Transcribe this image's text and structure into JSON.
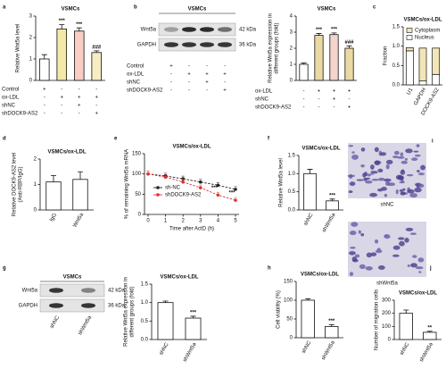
{
  "chart_data": [
    {
      "type": "bar",
      "panel": "a",
      "title": "VSMCs",
      "ylabel": "Relative Wnt5a level",
      "values": [
        1.0,
        2.4,
        2.3,
        1.3
      ],
      "errors": [
        0.2,
        0.2,
        0.15,
        0.08
      ],
      "colors": [
        "#ffffff",
        "#f5e7a8",
        "#f8cdc4",
        "#f6edc2"
      ],
      "annotations": [
        null,
        "***",
        "***",
        "###"
      ],
      "ylim": [
        0,
        3
      ],
      "yticks": [
        0,
        1,
        2,
        3
      ],
      "conditions": [
        {
          "name": "Control",
          "marks": [
            "+",
            "-",
            "-",
            "-"
          ]
        },
        {
          "name": "ox-LDL",
          "marks": [
            "-",
            "+",
            "+",
            "+"
          ]
        },
        {
          "name": "shNC",
          "marks": [
            "-",
            "-",
            "+",
            "-"
          ]
        },
        {
          "name": "shDOCK9-AS2",
          "marks": [
            "-",
            "-",
            "-",
            "+"
          ]
        }
      ]
    },
    {
      "type": "bar",
      "title": "VSMCs",
      "ylabel": [
        "Relative Wnt5a expression in",
        "different groups (fold)"
      ],
      "values": [
        1.0,
        2.8,
        2.85,
        2.0
      ],
      "errors": [
        0.08,
        0.12,
        0.1,
        0.15
      ],
      "colors": [
        "#ffffff",
        "#ead9a3",
        "#f5d4cd",
        "#ead9a3"
      ],
      "annotations": [
        null,
        "***",
        "***",
        "###"
      ],
      "ylim": [
        0,
        4
      ],
      "yticks": [
        0,
        1,
        2,
        3,
        4
      ],
      "conditions": [
        {
          "name": "ox-LDL",
          "marks": [
            "-",
            "+",
            "+",
            "+"
          ]
        },
        {
          "name": "shNC",
          "marks": [
            "-",
            "-",
            "+",
            "-"
          ]
        },
        {
          "name": "shDOCK9-AS2",
          "marks": [
            "-",
            "-",
            "-",
            "+"
          ]
        }
      ]
    },
    {
      "type": "bar",
      "stacked": true,
      "panel": "c",
      "title": "VSMCs/ox-LDL",
      "ylabel": "Fraction",
      "categories": [
        "U1",
        "GAPDH",
        "DOCK9-AS2"
      ],
      "series": [
        {
          "name": "Cytoplasm",
          "color": "#f3e5b5",
          "values": [
            0.08,
            0.85,
            0.68
          ]
        },
        {
          "name": "Nucleus",
          "color": "#ffffff",
          "values": [
            0.88,
            0.1,
            0.27
          ]
        }
      ],
      "ylim": [
        0,
        1.5
      ],
      "yticks": [
        {
          "value": 0,
          "label": "0.0"
        },
        0.5,
        {
          "value": 1,
          "label": "1.0"
        },
        1.5
      ]
    },
    {
      "type": "bar",
      "panel": "d",
      "title": "VSMCs/ox-LDL",
      "ylabel": [
        "Relative DOCK9-AS2 level",
        "(Anti-RBP/IgG)"
      ],
      "categories": [
        "IgG",
        "Wnt5a"
      ],
      "values": [
        1.1,
        1.2
      ],
      "errors": [
        0.25,
        0.3
      ],
      "colors": [
        "#ffffff",
        "#ffffff"
      ],
      "ylim": [
        0,
        2
      ],
      "yticks": [
        0,
        1,
        2
      ]
    },
    {
      "type": "line",
      "panel": "e",
      "title": "VSMCs/ox-LDL",
      "xlabel": "Time after ActD (h)",
      "ylabel": "% of remaining Wnt5a mRNA",
      "x": [
        0,
        1,
        2,
        3,
        4,
        5
      ],
      "series": [
        {
          "name": "sh-NC",
          "color": "#222222",
          "values": [
            100,
            95,
            88,
            80,
            72,
            62
          ]
        },
        {
          "name": "shDOCK9-AS2",
          "color": "#e03030",
          "values": [
            100,
            92,
            80,
            66,
            48,
            35
          ]
        }
      ],
      "annotations": [
        null,
        null,
        null,
        null,
        "***",
        "***"
      ],
      "xlim": [
        0,
        5
      ],
      "xticks": [
        0,
        1,
        2,
        3,
        4,
        5
      ],
      "ylim": [
        0,
        150
      ],
      "yticks": [
        0,
        50,
        100,
        150
      ]
    },
    {
      "type": "bar",
      "panel": "f",
      "title": "VSMCs/ox-LDL",
      "ylabel": "Relative Wnt5a level",
      "categories": [
        "shNC",
        "shWnt5a"
      ],
      "values": [
        1.0,
        0.25
      ],
      "errors": [
        0.12,
        0.05
      ],
      "colors": [
        "#ffffff",
        "#ffffff"
      ],
      "annotations": [
        null,
        "***"
      ],
      "ylim": [
        0,
        1.5
      ],
      "yticks": [
        {
          "value": 0,
          "label": "0.0"
        },
        0.5,
        {
          "value": 1,
          "label": "1.0"
        },
        1.5
      ]
    },
    {
      "type": "bar",
      "title": "VSMCs/ox-LDL",
      "ylabel": [
        "Relative Wnt5a expression in",
        "different groups (fold)"
      ],
      "categories": [
        "shNC",
        "shWnt5a"
      ],
      "values": [
        1.0,
        0.58
      ],
      "errors": [
        0.04,
        0.05
      ],
      "colors": [
        "#ffffff",
        "#ffffff"
      ],
      "annotations": [
        null,
        "***"
      ],
      "ylim": [
        0,
        1.5
      ],
      "yticks": [
        {
          "value": 0,
          "label": "0.0"
        },
        0.5,
        {
          "value": 1,
          "label": "1.0"
        },
        1.5
      ]
    },
    {
      "type": "bar",
      "panel": "h",
      "title": "VSMCs/ox-LDL",
      "ylabel": "Cell viability (%)",
      "categories": [
        "shNC",
        "shWnt5a"
      ],
      "values": [
        100,
        30
      ],
      "errors": [
        4,
        5
      ],
      "colors": [
        "#ffffff",
        "#ffffff"
      ],
      "annotations": [
        null,
        "***"
      ],
      "ylim": [
        0,
        150
      ],
      "yticks": [
        0,
        50,
        100,
        150
      ]
    },
    {
      "type": "bar",
      "panel": "j",
      "title": "VSMCs/ox-LDL",
      "ylabel": "Number of migration cells",
      "categories": [
        "shNC",
        "shWnt5a"
      ],
      "values": [
        200,
        55
      ],
      "errors": [
        25,
        8
      ],
      "colors": [
        "#ffffff",
        "#ffffff"
      ],
      "annotations": [
        null,
        "**"
      ],
      "ylim": [
        0,
        300
      ],
      "yticks": [
        0,
        100,
        200,
        300
      ]
    }
  ],
  "blots": [
    {
      "panel": "b",
      "title": "VSMCs",
      "bands": [
        {
          "name": "Wnt5a",
          "size": "42 kDa"
        },
        {
          "name": "GAPDH",
          "size": "36 kDa"
        }
      ],
      "conditions": [
        {
          "name": "Control",
          "marks": [
            "+",
            "-",
            "-",
            "-"
          ]
        },
        {
          "name": "ox-LDL",
          "marks": [
            "-",
            "+",
            "+",
            "+"
          ]
        },
        {
          "name": "shNC",
          "marks": [
            "-",
            "-",
            "+",
            "-"
          ]
        },
        {
          "name": "shDOCK9-AS2",
          "marks": [
            "-",
            "-",
            "-",
            "+"
          ]
        }
      ]
    },
    {
      "panel": "g",
      "title": "VSMCs",
      "bands": [
        {
          "name": "Wnt5a",
          "size": "42 kDa"
        },
        {
          "name": "GAPDH",
          "size": "36 kDa"
        }
      ],
      "lanes": [
        "shNC",
        "shWnt5a"
      ]
    }
  ],
  "images": {
    "panel": "i",
    "labels": [
      "shNC",
      "shWnt5a"
    ]
  }
}
